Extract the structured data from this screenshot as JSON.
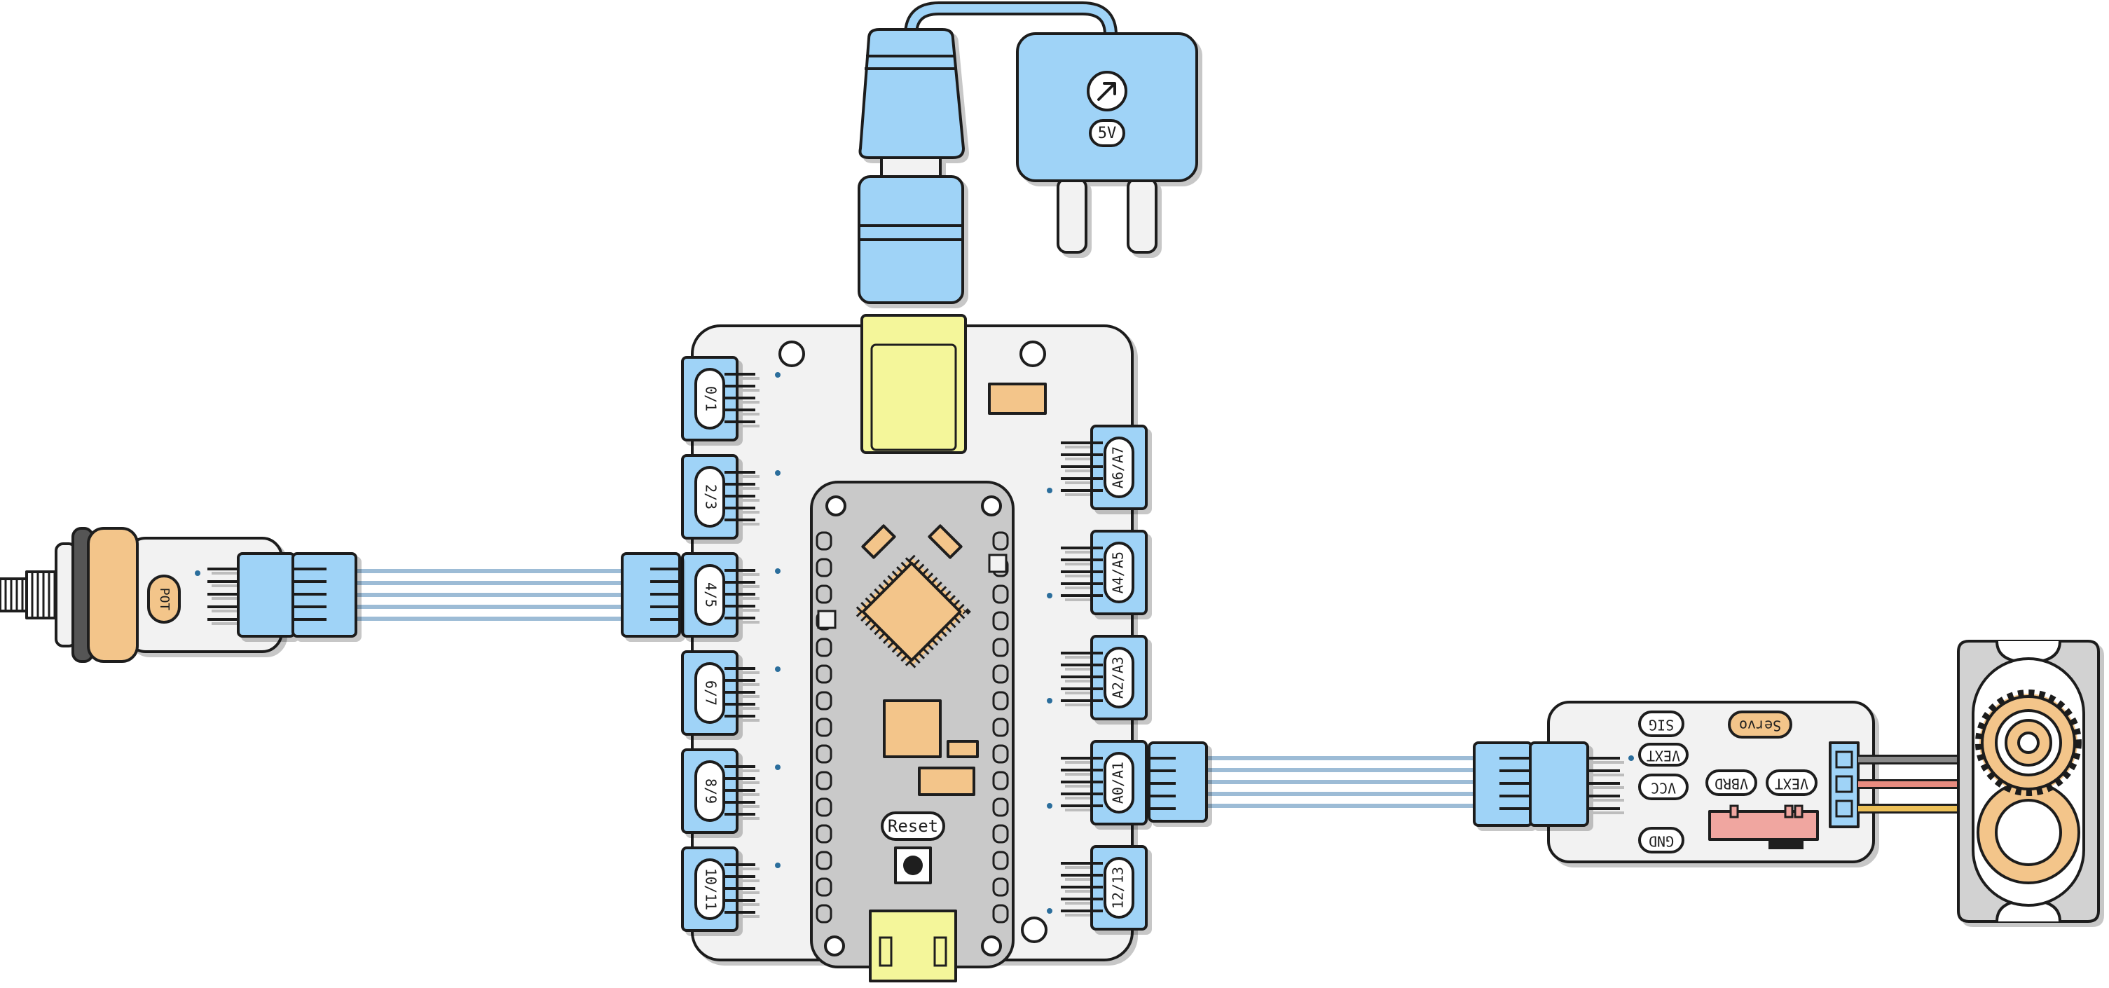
{
  "diagram": {
    "board": {
      "ports_left": [
        "0/1",
        "2/3",
        "4/5",
        "6/7",
        "8/9",
        "10/11"
      ],
      "ports_right": [
        "A6/A7",
        "A4/A5",
        "A2/A3",
        "A0/A1",
        "12/13"
      ],
      "reset_label": "Reset"
    },
    "power_adapter": {
      "voltage_label": "5V",
      "icon": "arrow-up-right-icon"
    },
    "potentiometer": {
      "label": "POT"
    },
    "servo_driver": {
      "title": "Servo",
      "pins": {
        "sig": "SIG",
        "vext_top": "VEXT",
        "vcc": "VCC",
        "gnd": "GND",
        "vbrd": "VBRD",
        "vext_side": "VEXT"
      }
    },
    "colors": {
      "module_blue": "#9fd3f7",
      "board_white": "#f2f2f2",
      "mcu_orange": "#f3c58a",
      "usb_yellow": "#f4f69a",
      "ribbon_blue": "#9dbcd6",
      "servo_grey": "#d2d2d2",
      "wire_grey": "#8a8a8a",
      "wire_red": "#e88c80",
      "wire_yellow": "#ecc058"
    }
  }
}
